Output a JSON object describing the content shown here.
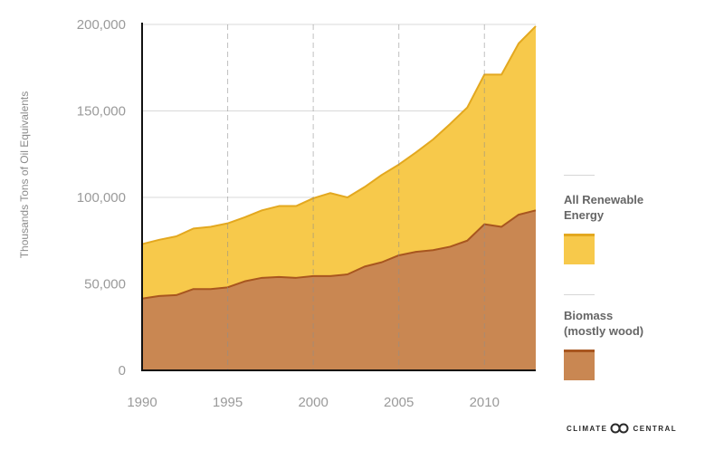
{
  "chart_data": {
    "type": "area",
    "ylabel": "Thousands Tons of Oil Equivalents",
    "xlim": [
      1990,
      2013
    ],
    "ylim": [
      0,
      200000
    ],
    "x_ticks": [
      1990,
      1995,
      2000,
      2005,
      2010
    ],
    "y_ticks": [
      0,
      50000,
      100000,
      150000,
      200000
    ],
    "y_tick_labels": [
      "0",
      "50,000",
      "100,000",
      "150,000",
      "200,000"
    ],
    "grid": "vertical dashed at x ticks, horizontal solid at y ticks",
    "legend_position": "right",
    "x": [
      1990,
      1991,
      1992,
      1993,
      1994,
      1995,
      1996,
      1997,
      1998,
      1999,
      2000,
      2001,
      2002,
      2003,
      2004,
      2005,
      2006,
      2007,
      2008,
      2009,
      2010,
      2011,
      2012,
      2013
    ],
    "series": [
      {
        "name": "All Renewable Energy",
        "color": "#f7c94b",
        "line_color": "#e3a81f",
        "values": [
          73000,
          75500,
          77500,
          82000,
          83000,
          85000,
          88500,
          92500,
          95000,
          95000,
          99500,
          102500,
          100000,
          106000,
          113000,
          119000,
          126000,
          133500,
          142500,
          152000,
          171000,
          171000,
          189000,
          199000
        ]
      },
      {
        "name": "Biomass (mostly wood)",
        "color": "#c98752",
        "line_color": "#a8561f",
        "values": [
          41500,
          43000,
          43500,
          47000,
          47000,
          48000,
          51500,
          53500,
          54000,
          53500,
          54500,
          54500,
          55500,
          60000,
          62500,
          66500,
          68500,
          69500,
          71500,
          75000,
          84500,
          83000,
          90000,
          92500
        ]
      }
    ]
  },
  "legend": {
    "items": [
      {
        "label_line1": "All Renewable",
        "label_line2": "Energy",
        "fill": "#f7c94b",
        "border": "#e3a81f"
      },
      {
        "label_line1": "Biomass",
        "label_line2": "(mostly wood)",
        "fill": "#c98752",
        "border": "#a8561f"
      }
    ]
  },
  "logo": {
    "left": "CLIMATE",
    "right": "CENTRAL"
  }
}
